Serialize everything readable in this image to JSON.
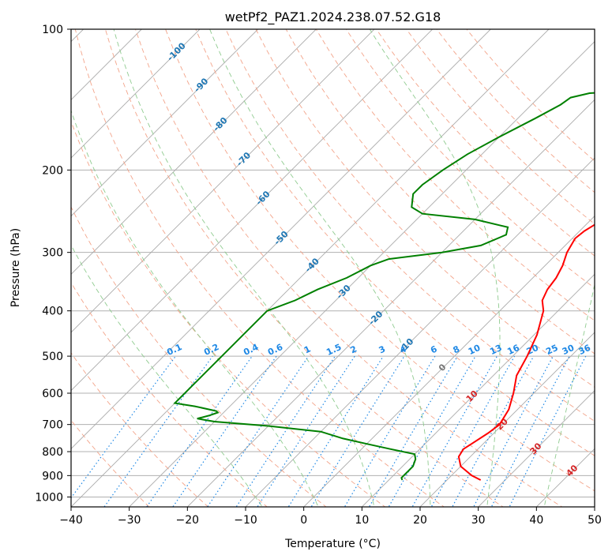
{
  "chart_data": {
    "type": "line",
    "title": "wetPf2_PAZ1.2024.238.07.52.G18",
    "xlabel": "Temperature (°C)",
    "ylabel": "Pressure (hPa)",
    "xlim": [
      -40,
      50
    ],
    "ylim": [
      1050,
      100
    ],
    "y_scale": "log",
    "x_ticks": [
      -40,
      -30,
      -20,
      -10,
      0,
      10,
      20,
      30,
      40,
      50
    ],
    "x_tick_labels": [
      "−40",
      "−30",
      "−20",
      "−10",
      "0",
      "10",
      "20",
      "30",
      "40",
      "50"
    ],
    "y_ticks": [
      1000,
      900,
      800,
      700,
      600,
      500,
      400,
      300,
      200,
      100
    ],
    "y_tick_labels": [
      "1000",
      "900",
      "800",
      "700",
      "600",
      "500",
      "400",
      "300",
      "200",
      "100"
    ],
    "grid": true,
    "series": [
      {
        "color": "#ff0000",
        "points": [
          [
            920,
            25.8
          ],
          [
            900,
            23.5
          ],
          [
            860,
            20.0
          ],
          [
            820,
            18.0
          ],
          [
            790,
            17.5
          ],
          [
            770,
            18.0
          ],
          [
            730,
            19.0
          ],
          [
            700,
            19.5
          ],
          [
            650,
            18.5
          ],
          [
            600,
            16.5
          ],
          [
            550,
            14.0
          ],
          [
            500,
            12.5
          ],
          [
            450,
            10.5
          ],
          [
            400,
            7.5
          ],
          [
            380,
            5.5
          ],
          [
            360,
            4.5
          ],
          [
            340,
            4.0
          ],
          [
            320,
            3.0
          ],
          [
            300,
            1.5
          ],
          [
            280,
            0.5
          ],
          [
            270,
            0.8
          ],
          [
            250,
            2.5
          ],
          [
            230,
            4.0
          ],
          [
            210,
            5.5
          ],
          [
            200,
            6.5
          ],
          [
            180,
            7.5
          ],
          [
            170,
            7.5
          ],
          [
            150,
            7.0
          ],
          [
            140,
            7.5
          ],
          [
            130,
            8.5
          ],
          [
            120,
            8.0
          ],
          [
            112,
            9.0
          ],
          [
            105,
            12.0
          ],
          [
            100,
            16.0
          ]
        ]
      },
      {
        "color": "#008000",
        "points": [
          [
            920,
            12.3
          ],
          [
            910,
            11.8
          ],
          [
            890,
            11.8
          ],
          [
            860,
            11.8
          ],
          [
            830,
            11.0
          ],
          [
            810,
            10.0
          ],
          [
            790,
            5.0
          ],
          [
            770,
            0.0
          ],
          [
            750,
            -5.0
          ],
          [
            725,
            -10.0
          ],
          [
            705,
            -20.0
          ],
          [
            690,
            -30.0
          ],
          [
            680,
            -33.5
          ],
          [
            670,
            -32.0
          ],
          [
            660,
            -31.0
          ],
          [
            655,
            -31.5
          ],
          [
            650,
            -33.0
          ],
          [
            640,
            -36.0
          ],
          [
            630,
            -40.0
          ],
          [
            400,
            -40.0
          ],
          [
            380,
            -37.0
          ],
          [
            360,
            -35.0
          ],
          [
            340,
            -32.0
          ],
          [
            320,
            -30.0
          ],
          [
            310,
            -28.0
          ],
          [
            300,
            -20.0
          ],
          [
            290,
            -14.5
          ],
          [
            275,
            -12.0
          ],
          [
            265,
            -13.0
          ],
          [
            255,
            -20.0
          ],
          [
            248,
            -30.0
          ],
          [
            240,
            -33.0
          ],
          [
            225,
            -35.0
          ],
          [
            215,
            -35.0
          ],
          [
            200,
            -34.0
          ],
          [
            185,
            -32.5
          ],
          [
            170,
            -30.0
          ],
          [
            155,
            -27.0
          ],
          [
            145,
            -25.0
          ],
          [
            140,
            -24.5
          ],
          [
            137,
            -22.0
          ],
          [
            134,
            -10.0
          ],
          [
            130,
            -5.0
          ],
          [
            125,
            -2.0
          ],
          [
            120,
            0.0
          ],
          [
            115,
            1.0
          ],
          [
            110,
            1.0
          ],
          [
            100,
            1.0
          ]
        ]
      }
    ],
    "dry_adiabats_C": [
      -30,
      -20,
      -10,
      0,
      10,
      20,
      30,
      40,
      50,
      60,
      70,
      80,
      90,
      100,
      110,
      120,
      130,
      140,
      150
    ],
    "moist_adiabats_C": [
      -10,
      0,
      10,
      20,
      30,
      40
    ],
    "isotherms_C": [
      -100,
      -90,
      -80,
      -70,
      -60,
      -50,
      -40,
      -30,
      -20,
      -10,
      0,
      10,
      20,
      30,
      40,
      50
    ],
    "isotherm_labels": [
      {
        "t": -100,
        "text": "-100",
        "p": 112,
        "color": "#1f77b4"
      },
      {
        "t": -90,
        "text": "-90",
        "p": 132,
        "color": "#1f77b4"
      },
      {
        "t": -80,
        "text": "-80",
        "p": 160,
        "color": "#1f77b4"
      },
      {
        "t": -70,
        "text": "-70",
        "p": 190,
        "color": "#1f77b4"
      },
      {
        "t": -60,
        "text": "-60",
        "p": 230,
        "color": "#1f77b4"
      },
      {
        "t": -50,
        "text": "-50",
        "p": 280,
        "color": "#1f77b4"
      },
      {
        "t": -40,
        "text": "-40",
        "p": 320,
        "color": "#1f77b4"
      },
      {
        "t": -30,
        "text": "-30",
        "p": 365,
        "color": "#1f77b4"
      },
      {
        "t": -20,
        "text": "-20",
        "p": 415,
        "color": "#1f77b4"
      },
      {
        "t": -10,
        "text": "-10",
        "p": 475,
        "color": "#1f77b4"
      },
      {
        "t": 0,
        "text": "0",
        "p": 530,
        "color": "#777777"
      },
      {
        "t": 10,
        "text": "10",
        "p": 610,
        "color": "#d62728"
      },
      {
        "t": 20,
        "text": "20",
        "p": 700,
        "color": "#d62728"
      },
      {
        "t": 30,
        "text": "30",
        "p": 790,
        "color": "#d62728"
      },
      {
        "t": 40,
        "text": "40",
        "p": 880,
        "color": "#d62728"
      }
    ],
    "mixing_ratios_gkg": [
      {
        "w": 0.1,
        "label": "0.1"
      },
      {
        "w": 0.2,
        "label": "0.2"
      },
      {
        "w": 0.4,
        "label": "0.4"
      },
      {
        "w": 0.6,
        "label": "0.6"
      },
      {
        "w": 1,
        "label": "1"
      },
      {
        "w": 1.5,
        "label": "1.5"
      },
      {
        "w": 2,
        "label": "2"
      },
      {
        "w": 3,
        "label": "3"
      },
      {
        "w": 4,
        "label": "4"
      },
      {
        "w": 6,
        "label": "6"
      },
      {
        "w": 8,
        "label": "8"
      },
      {
        "w": 10,
        "label": "10"
      },
      {
        "w": 13,
        "label": "13"
      },
      {
        "w": 16,
        "label": "16"
      },
      {
        "w": 20,
        "label": "20"
      },
      {
        "w": 25,
        "label": "25"
      },
      {
        "w": 30,
        "label": "30"
      },
      {
        "w": 36,
        "label": "36"
      }
    ]
  }
}
